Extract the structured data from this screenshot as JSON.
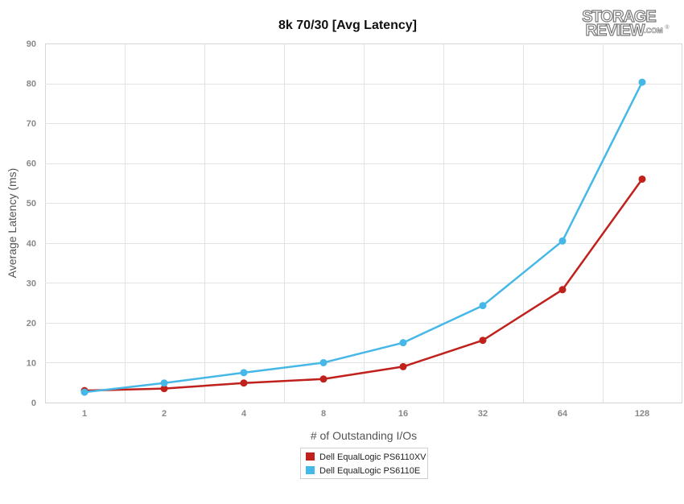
{
  "logo": {
    "line1": "STORAGE",
    "line2": "REVIEW",
    "suffix": ".COM",
    "mark": "®"
  },
  "chart_data": {
    "type": "line",
    "title": "8k 70/30 [Avg Latency]",
    "xlabel": "# of Outstanding I/Os",
    "ylabel": "Average Latency (ms)",
    "categories": [
      "1",
      "2",
      "4",
      "8",
      "16",
      "32",
      "64",
      "128"
    ],
    "ylim": [
      0,
      90
    ],
    "yticks": [
      0,
      10,
      20,
      30,
      40,
      50,
      60,
      70,
      80,
      90
    ],
    "grid": true,
    "legend_position": "bottom-center",
    "series": [
      {
        "name": "Dell EqualLogic PS6110XV",
        "color": "#c0211c",
        "values": [
          3.0,
          3.5,
          4.9,
          5.9,
          9.0,
          15.6,
          28.3,
          56.0
        ]
      },
      {
        "name": "Dell EqualLogic PS6110E",
        "color": "#45b8e8",
        "values": [
          2.6,
          4.9,
          7.5,
          10.0,
          15.0,
          24.3,
          40.5,
          80.3
        ]
      }
    ]
  }
}
